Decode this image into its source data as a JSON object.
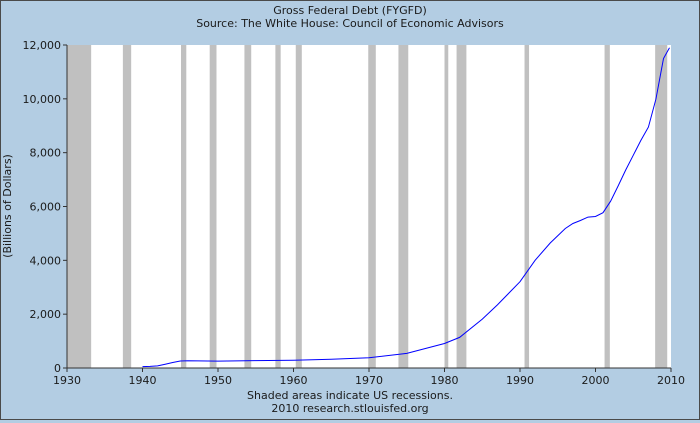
{
  "chart_data": {
    "type": "line",
    "title": "Gross Federal Debt (FYGFD)",
    "subtitle": "Source: The White House: Council of Economic Advisors",
    "ylabel": "(Billions of Dollars)",
    "xlabel": "",
    "xlim": [
      1930,
      2010
    ],
    "ylim": [
      0,
      12000
    ],
    "x_ticks": [
      1930,
      1940,
      1950,
      1960,
      1970,
      1980,
      1990,
      2000,
      2010
    ],
    "y_ticks": [
      0,
      2000,
      4000,
      6000,
      8000,
      10000,
      12000
    ],
    "y_tick_labels": [
      "0",
      "2,000",
      "4,000",
      "6,000",
      "8,000",
      "10,000",
      "12,000"
    ],
    "grid": false,
    "line_color": "#0000ff",
    "plot_background": "#ffffff",
    "recession_color": "#c0c0c0",
    "recessions": [
      [
        1930.0,
        1933.2
      ],
      [
        1937.4,
        1938.5
      ],
      [
        1945.1,
        1945.8
      ],
      [
        1948.9,
        1949.8
      ],
      [
        1953.5,
        1954.4
      ],
      [
        1957.6,
        1958.3
      ],
      [
        1960.3,
        1961.1
      ],
      [
        1969.9,
        1970.9
      ],
      [
        1973.9,
        1975.2
      ],
      [
        1980.0,
        1980.5
      ],
      [
        1981.6,
        1982.9
      ],
      [
        1990.6,
        1991.2
      ],
      [
        2001.2,
        2001.9
      ],
      [
        2007.9,
        2009.5
      ]
    ],
    "series": [
      {
        "x": [
          1940,
          1941,
          1942,
          1943,
          1944,
          1945,
          1946,
          1950,
          1955,
          1960,
          1965,
          1970,
          1975,
          1980,
          1982,
          1985,
          1987,
          1990,
          1992,
          1994,
          1996,
          1997,
          1998,
          1999,
          2000,
          2001,
          2002,
          2003,
          2004,
          2005,
          2006,
          2007,
          2008,
          2009,
          2009.8
        ],
        "y": [
          51,
          58,
          79,
          142,
          204,
          260,
          271,
          257,
          274,
          291,
          322,
          381,
          542,
          909,
          1137,
          1817,
          2346,
          3206,
          4002,
          4643,
          5181,
          5370,
          5479,
          5606,
          5629,
          5770,
          6198,
          6760,
          7355,
          7905,
          8451,
          8951,
          9986,
          11500,
          11900
        ]
      }
    ],
    "footer_lines": [
      "Shaded areas indicate US recessions.",
      "2010 research.stlouisfed.org"
    ]
  }
}
